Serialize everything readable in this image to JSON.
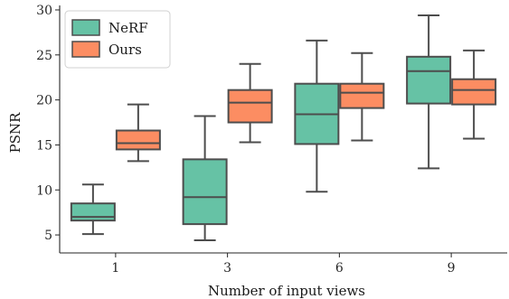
{
  "chart_data": {
    "type": "box",
    "title": "",
    "xlabel": "Number of input views",
    "ylabel": "PSNR",
    "categories": [
      "1",
      "3",
      "6",
      "9"
    ],
    "ylim": [
      3,
      30.5
    ],
    "yticks": [
      5,
      10,
      15,
      20,
      25,
      30
    ],
    "grid": false,
    "legend_position": "top-left",
    "series": [
      {
        "name": "NeRF",
        "color": "#66c2a5",
        "boxes": [
          {
            "min": 5.1,
            "q1": 6.6,
            "median": 7.0,
            "q3": 8.5,
            "max": 10.6
          },
          {
            "min": 4.4,
            "q1": 6.2,
            "median": 9.2,
            "q3": 13.4,
            "max": 18.2
          },
          {
            "min": 9.8,
            "q1": 15.1,
            "median": 18.4,
            "q3": 21.8,
            "max": 26.6
          },
          {
            "min": 12.4,
            "q1": 19.6,
            "median": 23.2,
            "q3": 24.8,
            "max": 29.4
          }
        ]
      },
      {
        "name": "Ours",
        "color": "#fc8d62",
        "boxes": [
          {
            "min": 13.2,
            "q1": 14.5,
            "median": 15.2,
            "q3": 16.6,
            "max": 19.5
          },
          {
            "min": 15.3,
            "q1": 17.5,
            "median": 19.7,
            "q3": 21.1,
            "max": 24.0
          },
          {
            "min": 15.5,
            "q1": 19.1,
            "median": 20.8,
            "q3": 21.8,
            "max": 25.2
          },
          {
            "min": 15.7,
            "q1": 19.5,
            "median": 21.1,
            "q3": 22.3,
            "max": 25.5
          }
        ]
      }
    ]
  }
}
